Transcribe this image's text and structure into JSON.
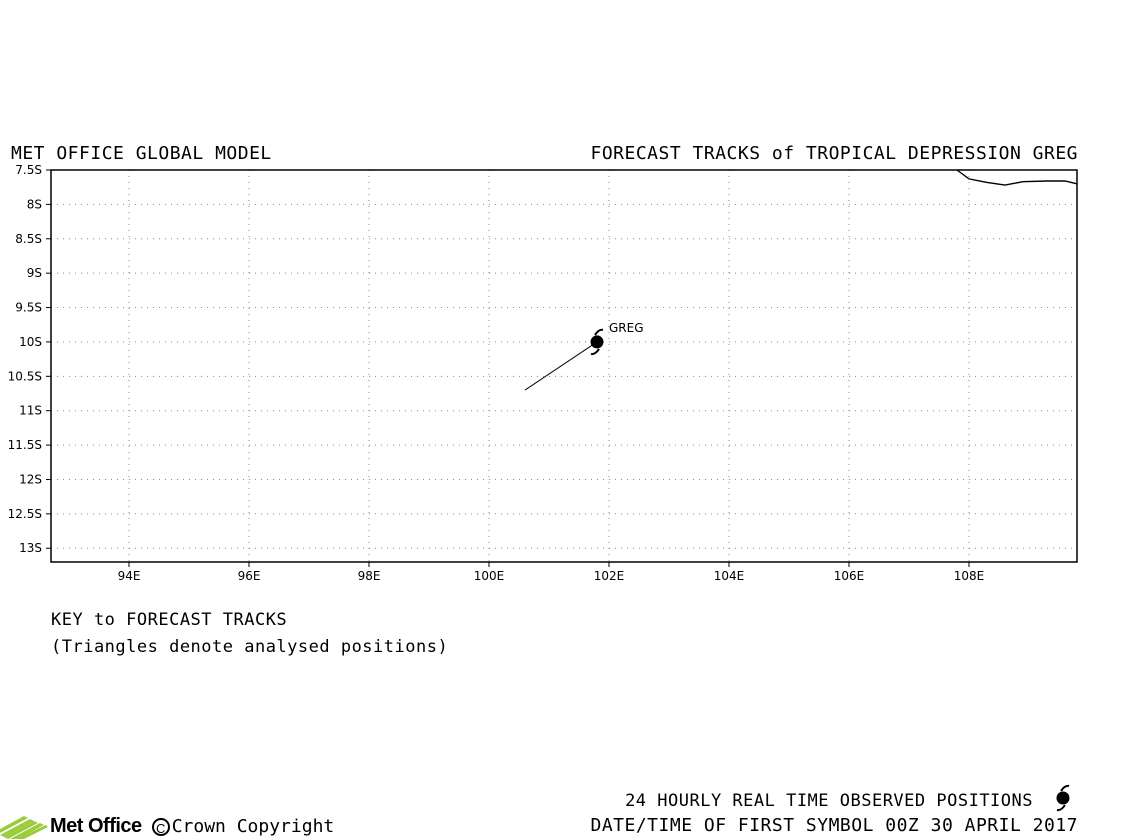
{
  "header": {
    "model": "MET OFFICE GLOBAL MODEL",
    "title": "FORECAST TRACKS of TROPICAL DEPRESSION GREG"
  },
  "key": {
    "title": "KEY to FORECAST TRACKS",
    "note": "(Triangles denote analysed positions)"
  },
  "footer": {
    "observed": "24 HOURLY REAL TIME OBSERVED POSITIONS",
    "first_symbol": "DATE/TIME OF FIRST SYMBOL 00Z 30 APRIL 2017",
    "logo": "Met Office",
    "copyright": "Crown Copyright",
    "copyright_symbol": "C"
  },
  "chart_data": {
    "type": "map",
    "lon_range": [
      92.7,
      109.8
    ],
    "lat_range": [
      -7.5,
      -13.2
    ],
    "lon_ticks": [
      "94E",
      "96E",
      "98E",
      "100E",
      "102E",
      "104E",
      "106E",
      "108E"
    ],
    "lon_tick_values": [
      94,
      96,
      98,
      100,
      102,
      104,
      106,
      108
    ],
    "lat_ticks": [
      "7.5S",
      "8S",
      "8.5S",
      "9S",
      "9.5S",
      "10S",
      "10.5S",
      "11S",
      "11.5S",
      "12S",
      "12.5S",
      "13S"
    ],
    "lat_tick_values": [
      -7.5,
      -8,
      -8.5,
      -9,
      -9.5,
      -10,
      -10.5,
      -11,
      -11.5,
      -12,
      -12.5,
      -13
    ],
    "grid": true,
    "storm": {
      "name": "GREG",
      "position": [
        101.8,
        -10.0
      ],
      "track": [
        [
          100.6,
          -10.7
        ],
        [
          101.8,
          -10.0
        ]
      ]
    },
    "coastline": [
      [
        107.8,
        -7.5
      ],
      [
        108.0,
        -7.63
      ],
      [
        108.3,
        -7.68
      ],
      [
        108.6,
        -7.72
      ],
      [
        108.9,
        -7.67
      ],
      [
        109.3,
        -7.66
      ],
      [
        109.6,
        -7.66
      ],
      [
        109.8,
        -7.7
      ]
    ]
  }
}
